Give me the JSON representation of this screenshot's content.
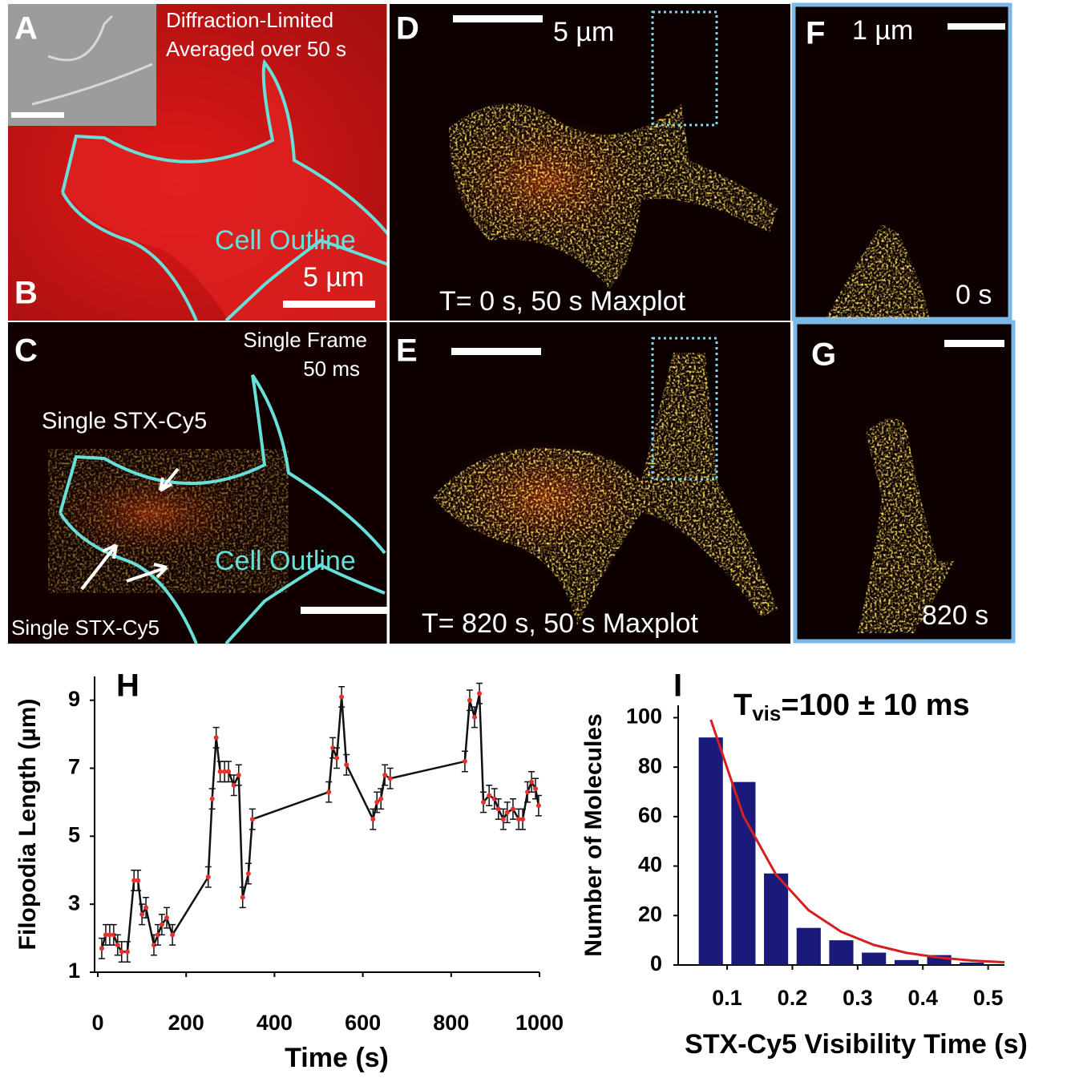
{
  "panels": {
    "a": {
      "label": "A",
      "text1": "Diffraction-Limited",
      "text2": "Averaged  over  50 s",
      "outline": "Cell Outline",
      "scale": "5 µm",
      "label_b": "B"
    },
    "c": {
      "label": "C",
      "text1": "Single Frame",
      "text2": "50 ms",
      "arrow_top": "Single STX-Cy5",
      "outline": "Cell Outline",
      "arrow_bottom": "Single STX-Cy5"
    },
    "d": {
      "label": "D",
      "scale": "5 µm",
      "caption": "T= 0 s, 50 s Maxplot"
    },
    "e": {
      "label": "E",
      "caption": "T= 820 s, 50 s Maxplot"
    },
    "f": {
      "label": "F",
      "scale": "1 µm",
      "caption": "0 s"
    },
    "g": {
      "label": "G",
      "caption": "820 s"
    }
  },
  "chart_data": [
    {
      "type": "line",
      "panel": "H",
      "xlabel": "Time (s)",
      "ylabel": "Filopodia Length  (µm)",
      "x": [
        9,
        18,
        27,
        36,
        45,
        54,
        67,
        82,
        91,
        100,
        109,
        127,
        136,
        145,
        156,
        169,
        250,
        259,
        268,
        277,
        287,
        296,
        308,
        319,
        328,
        341,
        350,
        523,
        532,
        541,
        552,
        563,
        623,
        632,
        641,
        650,
        662,
        831,
        842,
        853,
        864,
        873,
        886,
        898,
        907,
        918,
        927,
        940,
        953,
        962,
        973,
        982,
        991,
        998
      ],
      "values": [
        1.7,
        2.1,
        2.1,
        2.1,
        1.8,
        1.6,
        1.6,
        3.7,
        3.7,
        2.7,
        2.9,
        1.8,
        2.1,
        2.4,
        2.6,
        2.1,
        3.8,
        6.1,
        7.9,
        6.9,
        6.9,
        6.9,
        6.5,
        6.8,
        3.2,
        3.9,
        5.5,
        6.3,
        7.6,
        7.3,
        9.1,
        7.1,
        5.5,
        6.0,
        6.1,
        6.8,
        6.7,
        7.2,
        9.0,
        8.5,
        9.2,
        6.0,
        6.2,
        6.1,
        5.8,
        5.5,
        5.7,
        5.8,
        5.5,
        5.5,
        6.3,
        6.6,
        6.4,
        5.9
      ],
      "errors": [
        0.3,
        0.3,
        0.3,
        0.3,
        0.3,
        0.3,
        0.3,
        0.3,
        0.3,
        0.3,
        0.3,
        0.3,
        0.3,
        0.3,
        0.3,
        0.3,
        0.3,
        0.3,
        0.3,
        0.3,
        0.3,
        0.3,
        0.3,
        0.3,
        0.3,
        0.3,
        0.3,
        0.3,
        0.3,
        0.3,
        0.3,
        0.3,
        0.3,
        0.3,
        0.3,
        0.3,
        0.3,
        0.3,
        0.3,
        0.3,
        0.3,
        0.3,
        0.3,
        0.3,
        0.3,
        0.3,
        0.3,
        0.3,
        0.3,
        0.3,
        0.3,
        0.3,
        0.3,
        0.3
      ],
      "color": "#111111",
      "marker_color": "#e8312a",
      "xlim": [
        0,
        1000
      ],
      "xticks": [
        0,
        200,
        400,
        600,
        800,
        1000
      ],
      "ylim": [
        1,
        9.7
      ],
      "yticks": [
        1,
        3,
        5,
        7,
        9
      ]
    },
    {
      "type": "bar",
      "panel": "I",
      "title": "T",
      "title_sub": "vis",
      "title_rest": "=100 ± 10 ms",
      "xlabel": "STX-Cy5 Visibility Time (s)",
      "ylabel": "Number  of Molecules",
      "x": [
        0.075,
        0.125,
        0.175,
        0.225,
        0.275,
        0.325,
        0.375,
        0.425,
        0.475
      ],
      "values": [
        92,
        74,
        37,
        15,
        10,
        5,
        2,
        4,
        1
      ],
      "color": "#1a1a7a",
      "fit": {
        "x": [
          0.075,
          0.125,
          0.175,
          0.225,
          0.275,
          0.325,
          0.375,
          0.425,
          0.475,
          0.525
        ],
        "values": [
          99.2,
          60.2,
          36.5,
          22.1,
          13.4,
          8.1,
          4.9,
          3.0,
          1.8,
          1.1
        ],
        "color": "#d42020"
      },
      "xlim": [
        0.025,
        0.525
      ],
      "xticks": [
        0.1,
        0.2,
        0.3,
        0.4,
        0.5
      ],
      "ylim": [
        0,
        105
      ],
      "yticks": [
        0,
        20,
        40,
        60,
        80,
        100
      ]
    }
  ]
}
